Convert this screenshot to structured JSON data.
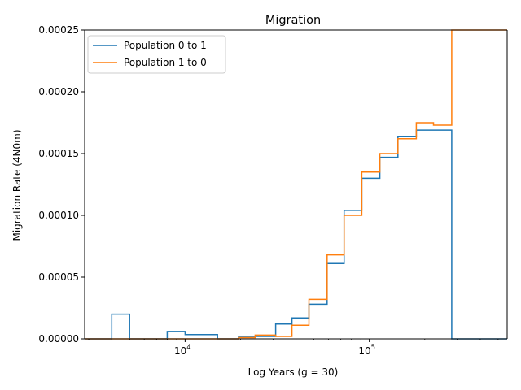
{
  "chart_data": {
    "type": "line",
    "title": "Migration",
    "xlabel": "Log Years (g = 30)",
    "ylabel": "Migration Rate (4N0m)",
    "x_scale": "log",
    "xlim": [
      2850,
      560000
    ],
    "ylim": [
      0,
      0.00025
    ],
    "y_ticks": [
      "0.00000",
      "0.00005",
      "0.00010",
      "0.00015",
      "0.00020",
      "0.00025"
    ],
    "y_tick_values": [
      0,
      5e-05,
      0.0001,
      0.00015,
      0.0002,
      0.00025
    ],
    "x_ticks": [
      {
        "value": 10000,
        "base": "10",
        "exp": "4"
      },
      {
        "value": 100000,
        "base": "10",
        "exp": "5"
      }
    ],
    "grid": false,
    "legend_position": "top-left",
    "series": [
      {
        "name": "Population 0 to 1",
        "color": "#1f77b4",
        "steps": [
          {
            "x0": 2850,
            "x1": 4000,
            "y": 0
          },
          {
            "x0": 4000,
            "x1": 5000,
            "y": 2e-05
          },
          {
            "x0": 5000,
            "x1": 8000,
            "y": 0
          },
          {
            "x0": 8000,
            "x1": 10000,
            "y": 6e-06
          },
          {
            "x0": 10000,
            "x1": 15000,
            "y": 3.5e-06
          },
          {
            "x0": 15000,
            "x1": 19500,
            "y": 0
          },
          {
            "x0": 19500,
            "x1": 31000,
            "y": 2e-06
          },
          {
            "x0": 31000,
            "x1": 38000,
            "y": 1.2e-05
          },
          {
            "x0": 38000,
            "x1": 47000,
            "y": 1.7e-05
          },
          {
            "x0": 47000,
            "x1": 59000,
            "y": 2.8e-05
          },
          {
            "x0": 59000,
            "x1": 73000,
            "y": 6.1e-05
          },
          {
            "x0": 73000,
            "x1": 91000,
            "y": 0.000104
          },
          {
            "x0": 91000,
            "x1": 114000,
            "y": 0.00013
          },
          {
            "x0": 114000,
            "x1": 143000,
            "y": 0.000147
          },
          {
            "x0": 143000,
            "x1": 180000,
            "y": 0.000164
          },
          {
            "x0": 180000,
            "x1": 280000,
            "y": 0.000169
          },
          {
            "x0": 280000,
            "x1": 560000,
            "y": 0
          }
        ]
      },
      {
        "name": "Population 1 to 0",
        "color": "#ff7f0e",
        "steps": [
          {
            "x0": 2850,
            "x1": 19500,
            "y": 0
          },
          {
            "x0": 19500,
            "x1": 24000,
            "y": 1e-06
          },
          {
            "x0": 24000,
            "x1": 31000,
            "y": 3e-06
          },
          {
            "x0": 31000,
            "x1": 38000,
            "y": 2e-06
          },
          {
            "x0": 38000,
            "x1": 47000,
            "y": 1.1e-05
          },
          {
            "x0": 47000,
            "x1": 59000,
            "y": 3.2e-05
          },
          {
            "x0": 59000,
            "x1": 73000,
            "y": 6.8e-05
          },
          {
            "x0": 73000,
            "x1": 91000,
            "y": 0.0001
          },
          {
            "x0": 91000,
            "x1": 114000,
            "y": 0.000135
          },
          {
            "x0": 114000,
            "x1": 143000,
            "y": 0.00015
          },
          {
            "x0": 143000,
            "x1": 180000,
            "y": 0.000162
          },
          {
            "x0": 180000,
            "x1": 223000,
            "y": 0.000175
          },
          {
            "x0": 223000,
            "x1": 280000,
            "y": 0.000173
          },
          {
            "x0": 280000,
            "x1": 560000,
            "y": 0.00025
          }
        ]
      }
    ]
  }
}
